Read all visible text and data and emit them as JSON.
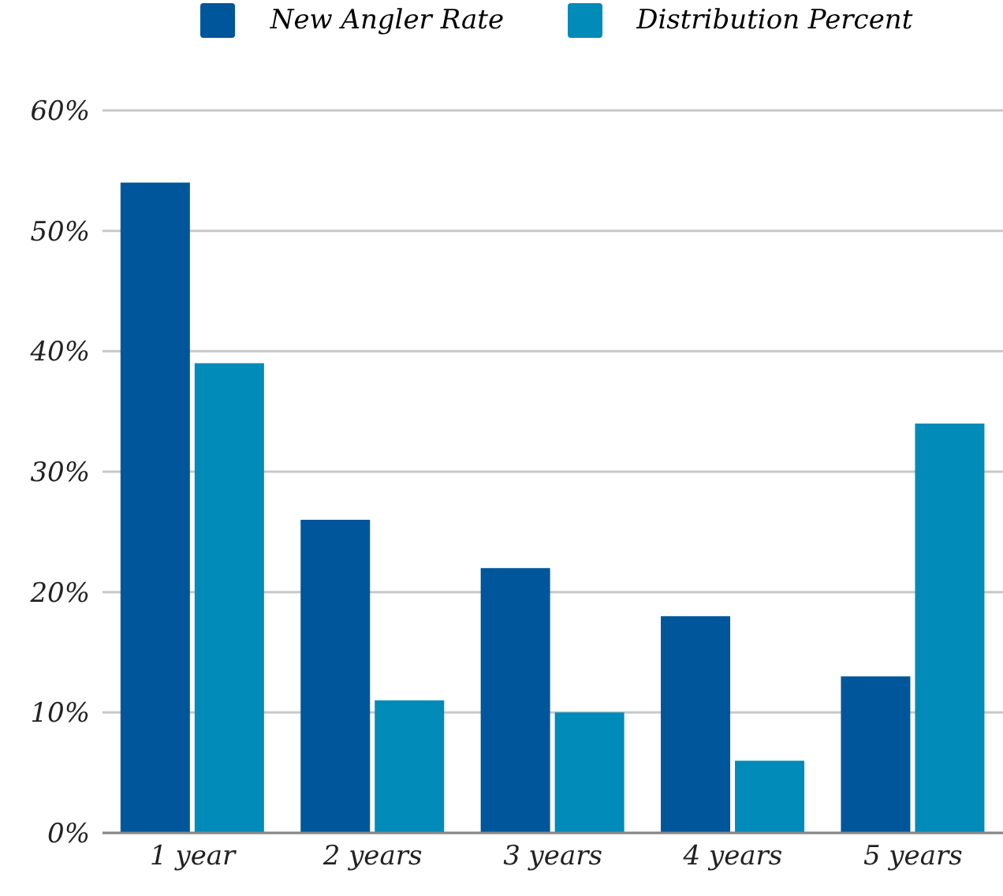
{
  "chart_data": {
    "type": "bar",
    "categories": [
      "1 year",
      "2 years",
      "3 years",
      "4 years",
      "5 years"
    ],
    "series": [
      {
        "name": "New Angler Rate",
        "color": "#00569a",
        "values": [
          54,
          26,
          22,
          18,
          13
        ]
      },
      {
        "name": "Distribution Percent",
        "color": "#008bb9",
        "values": [
          39,
          11,
          10,
          6,
          34
        ]
      }
    ],
    "ylim": [
      0,
      60
    ],
    "yticks": [
      {
        "value": 0,
        "label": "0%"
      },
      {
        "value": 10,
        "label": "10%"
      },
      {
        "value": 20,
        "label": "20%"
      },
      {
        "value": 30,
        "label": "30%"
      },
      {
        "value": 40,
        "label": "40%"
      },
      {
        "value": 50,
        "label": "50%"
      },
      {
        "value": 60,
        "label": "60%"
      }
    ],
    "grid": "y",
    "legend": "top"
  }
}
